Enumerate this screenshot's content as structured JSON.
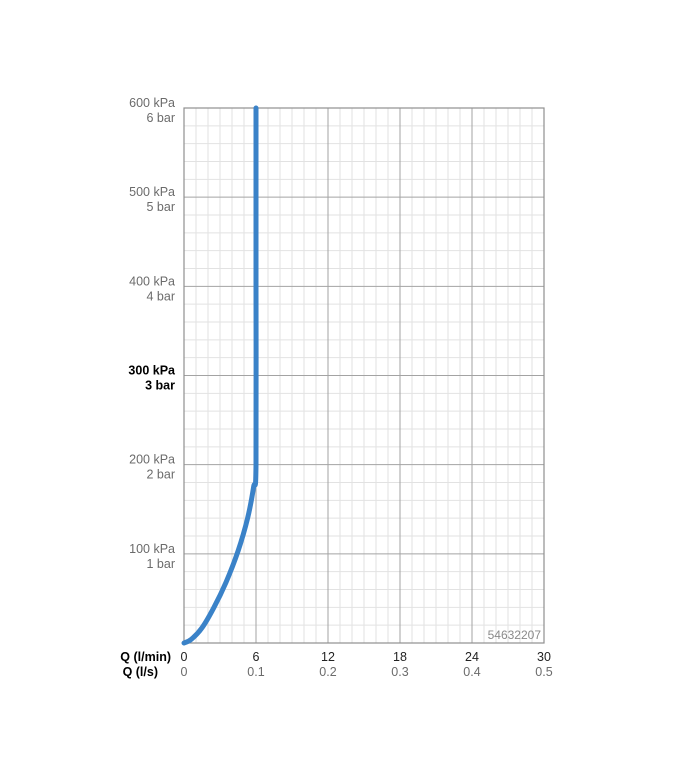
{
  "chart_data": {
    "type": "line",
    "series": [
      {
        "name": "",
        "x": [
          0,
          0.6,
          1.5,
          2.5,
          3.5,
          4.5,
          5.3,
          5.8,
          6.0,
          6.0,
          6.0
        ],
        "y": [
          0,
          4,
          17,
          40,
          68,
          103,
          140,
          175,
          200,
          400,
          600
        ],
        "color": "#3a82c8"
      }
    ],
    "xlim": [
      0,
      30
    ],
    "ylim": [
      0,
      600
    ],
    "grid": true,
    "x_major_ticks": [
      0,
      6,
      12,
      18,
      24,
      30
    ],
    "y_major_ticks": [
      100,
      200,
      300,
      400,
      500,
      600
    ],
    "x_axis": {
      "flow_min_label": "Q (l/min)",
      "flow_sec_label": "Q (l/s)",
      "flow_min_ticks": [
        "0",
        "6",
        "12",
        "18",
        "24",
        "30"
      ],
      "flow_sec_ticks": [
        "0",
        "0.1",
        "0.2",
        "0.3",
        "0.4",
        "0.5"
      ]
    },
    "y_axis": {
      "kpa_ticks": [
        "100 kPa",
        "200 kPa",
        "300 kPa",
        "400 kPa",
        "500 kPa",
        "600 kPa"
      ],
      "bar_ticks": [
        "1 bar",
        "2 bar",
        "3 bar",
        "4 bar",
        "5 bar",
        "6 bar"
      ],
      "highlight_index": 2
    },
    "annotation": "54632207",
    "colors": {
      "grid_major": "#a3a3a3",
      "grid_minor": "#e2e2e2",
      "frame": "#8f8f8f",
      "curve": "#3a82c8"
    }
  }
}
